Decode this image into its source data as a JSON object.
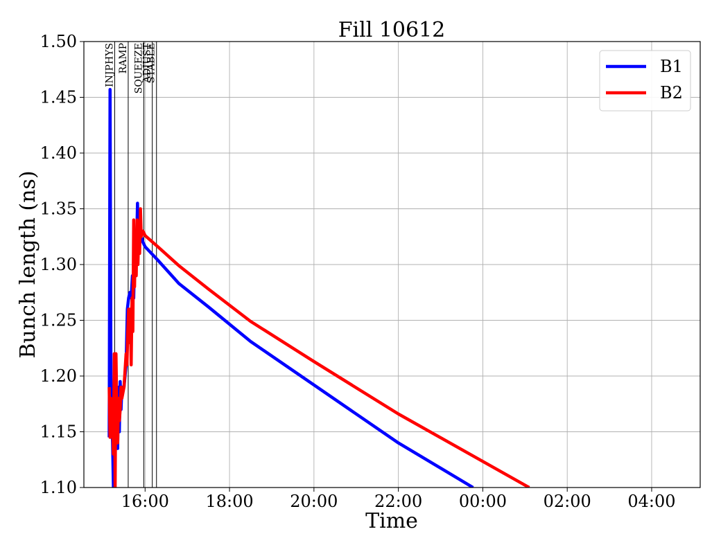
{
  "chart_data": {
    "type": "line",
    "title": "Fill 10612",
    "xlabel": "Time",
    "ylabel": "Bunch length (ns)",
    "x_unit": "hours",
    "xlim": [
      14.55,
      29.15
    ],
    "ylim": [
      1.1,
      1.5
    ],
    "grid": true,
    "legend_placement": "top-right",
    "x_ticks": [
      {
        "value": 16,
        "label": "16:00"
      },
      {
        "value": 18,
        "label": "18:00"
      },
      {
        "value": 20,
        "label": "20:00"
      },
      {
        "value": 22,
        "label": "22:00"
      },
      {
        "value": 24,
        "label": "00:00"
      },
      {
        "value": 26,
        "label": "02:00"
      },
      {
        "value": 28,
        "label": "04:00"
      }
    ],
    "y_ticks": [
      {
        "value": 1.1,
        "label": "1.10"
      },
      {
        "value": 1.15,
        "label": "1.15"
      },
      {
        "value": 1.2,
        "label": "1.20"
      },
      {
        "value": 1.25,
        "label": "1.25"
      },
      {
        "value": 1.3,
        "label": "1.30"
      },
      {
        "value": 1.35,
        "label": "1.35"
      },
      {
        "value": 1.4,
        "label": "1.40"
      },
      {
        "value": 1.45,
        "label": "1.45"
      },
      {
        "value": 1.5,
        "label": "1.50"
      }
    ],
    "phase_markers": [
      {
        "label": "INJPHYS",
        "x": 15.28
      },
      {
        "label": "RAMP",
        "x": 15.6
      },
      {
        "label": "SQUEEZE",
        "x": 15.97
      },
      {
        "label": "ADJUST",
        "x": 16.17
      },
      {
        "label": "STABLE",
        "x": 16.27
      }
    ],
    "series": [
      {
        "name": "B1",
        "color": "#0000ff",
        "points": [
          [
            15.15,
            1.145
          ],
          [
            15.17,
            1.457
          ],
          [
            15.19,
            1.2
          ],
          [
            15.21,
            1.16
          ],
          [
            15.23,
            1.14
          ],
          [
            15.25,
            1.1
          ],
          [
            15.27,
            1.12
          ],
          [
            15.29,
            1.17
          ],
          [
            15.31,
            1.19
          ],
          [
            15.33,
            1.16
          ],
          [
            15.35,
            1.135
          ],
          [
            15.37,
            1.19
          ],
          [
            15.39,
            1.15
          ],
          [
            15.41,
            1.195
          ],
          [
            15.43,
            1.17
          ],
          [
            15.45,
            1.19
          ],
          [
            15.5,
            1.19
          ],
          [
            15.55,
            1.21
          ],
          [
            15.58,
            1.26
          ],
          [
            15.61,
            1.27
          ],
          [
            15.64,
            1.275
          ],
          [
            15.67,
            1.27
          ],
          [
            15.7,
            1.29
          ],
          [
            15.73,
            1.27
          ],
          [
            15.76,
            1.32
          ],
          [
            15.79,
            1.3
          ],
          [
            15.82,
            1.355
          ],
          [
            15.85,
            1.31
          ],
          [
            15.88,
            1.34
          ],
          [
            15.91,
            1.325
          ],
          [
            15.95,
            1.32
          ],
          [
            16.0,
            1.316
          ],
          [
            16.3,
            1.304
          ],
          [
            16.8,
            1.283
          ],
          [
            17.5,
            1.262
          ],
          [
            18.5,
            1.231
          ],
          [
            20.0,
            1.192
          ],
          [
            22.0,
            1.14
          ],
          [
            23.77,
            1.1
          ]
        ]
      },
      {
        "name": "B2",
        "color": "#ff0000",
        "points": [
          [
            15.15,
            1.19
          ],
          [
            15.17,
            1.145
          ],
          [
            15.19,
            1.18
          ],
          [
            15.21,
            1.15
          ],
          [
            15.23,
            1.16
          ],
          [
            15.25,
            1.13
          ],
          [
            15.27,
            1.22
          ],
          [
            15.29,
            1.1
          ],
          [
            15.31,
            1.22
          ],
          [
            15.33,
            1.17
          ],
          [
            15.35,
            1.14
          ],
          [
            15.37,
            1.18
          ],
          [
            15.39,
            1.16
          ],
          [
            15.41,
            1.17
          ],
          [
            15.43,
            1.19
          ],
          [
            15.45,
            1.18
          ],
          [
            15.5,
            1.19
          ],
          [
            15.55,
            1.22
          ],
          [
            15.57,
            1.21
          ],
          [
            15.59,
            1.24
          ],
          [
            15.61,
            1.26
          ],
          [
            15.63,
            1.23
          ],
          [
            15.65,
            1.26
          ],
          [
            15.67,
            1.21
          ],
          [
            15.69,
            1.27
          ],
          [
            15.71,
            1.24
          ],
          [
            15.73,
            1.34
          ],
          [
            15.75,
            1.28
          ],
          [
            15.77,
            1.33
          ],
          [
            15.79,
            1.29
          ],
          [
            15.81,
            1.34
          ],
          [
            15.83,
            1.3
          ],
          [
            15.85,
            1.33
          ],
          [
            15.87,
            1.31
          ],
          [
            15.89,
            1.35
          ],
          [
            15.91,
            1.325
          ],
          [
            15.95,
            1.33
          ],
          [
            16.0,
            1.326
          ],
          [
            16.3,
            1.316
          ],
          [
            16.8,
            1.299
          ],
          [
            17.5,
            1.278
          ],
          [
            18.5,
            1.249
          ],
          [
            20.0,
            1.213
          ],
          [
            22.0,
            1.166
          ],
          [
            25.1,
            1.1
          ]
        ]
      }
    ]
  }
}
